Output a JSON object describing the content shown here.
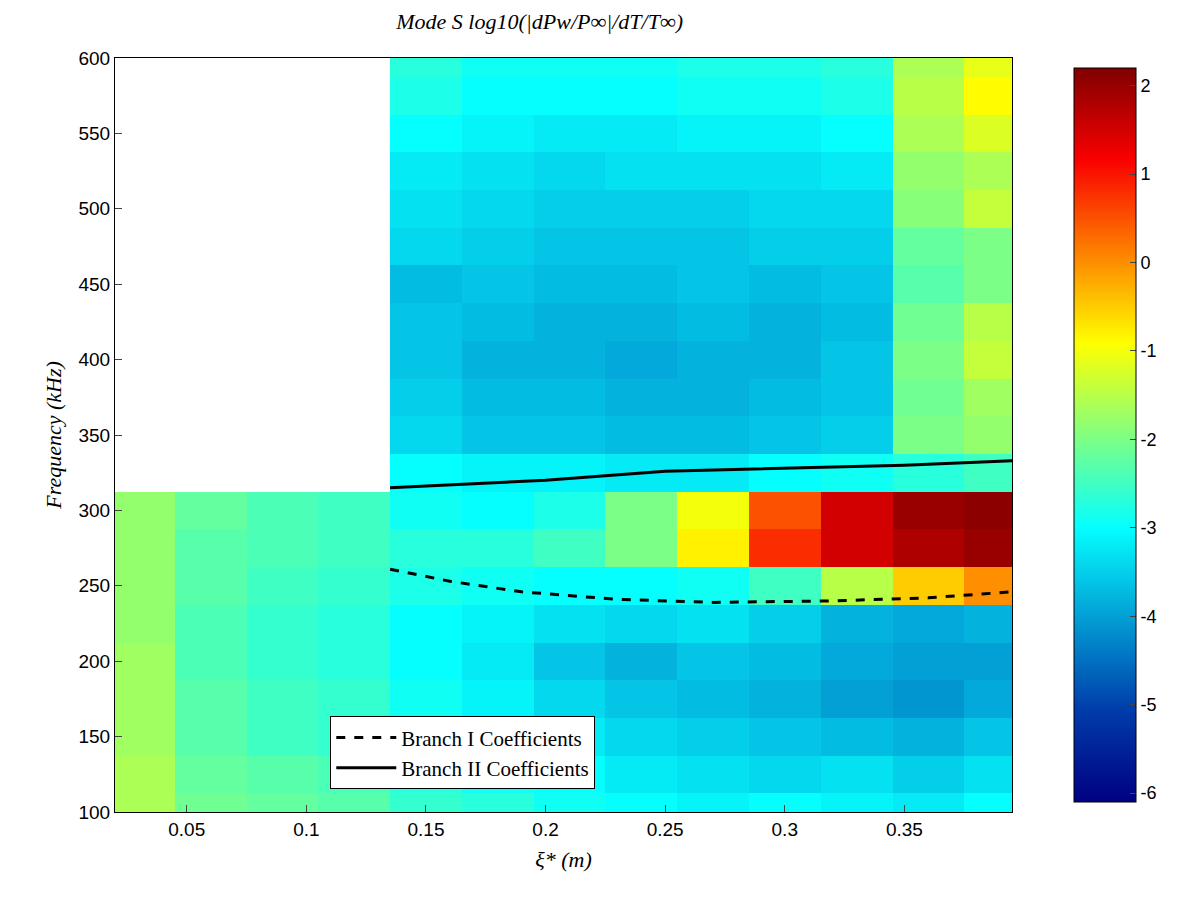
{
  "chart_data": {
    "type": "heatmap",
    "title": "Mode S log10(|dPw/P∞|/dT/T∞)",
    "x_label": "ξ* (m)",
    "y_label": "Frequency (kHz)",
    "xlim": [
      0.02,
      0.395
    ],
    "xticks": [
      0.05,
      0.1,
      0.15,
      0.2,
      0.25,
      0.3,
      0.35
    ],
    "ylim": [
      100,
      600
    ],
    "yticks": [
      100,
      150,
      200,
      250,
      300,
      350,
      400,
      450,
      500,
      550,
      600
    ],
    "zlim": [
      -6.1,
      2.2
    ],
    "zticks": [
      -6,
      -5,
      -4,
      -3,
      -2,
      -1,
      0,
      1,
      2
    ],
    "x": [
      0.03,
      0.06,
      0.09,
      0.12,
      0.15,
      0.18,
      0.21,
      0.24,
      0.27,
      0.3,
      0.33,
      0.36,
      0.39
    ],
    "y": [
      100,
      125,
      150,
      175,
      200,
      225,
      250,
      275,
      300,
      325,
      350,
      375,
      400,
      425,
      450,
      475,
      500,
      525,
      550,
      575,
      600
    ],
    "cells": [
      [
        -1.6,
        -2.1,
        -2.2,
        -2.3,
        -2.6,
        -2.7,
        -2.9,
        -3.0,
        -3.1,
        -3.0,
        -3.1,
        -3.2,
        -3.0
      ],
      [
        -1.6,
        -2.2,
        -2.3,
        -2.4,
        -2.7,
        -2.9,
        -3.0,
        -3.2,
        -3.3,
        -3.4,
        -3.3,
        -3.5,
        -3.3
      ],
      [
        -1.7,
        -2.3,
        -2.5,
        -2.6,
        -2.8,
        -3.0,
        -3.2,
        -3.4,
        -3.5,
        -3.6,
        -3.7,
        -3.8,
        -3.6
      ],
      [
        -1.7,
        -2.3,
        -2.5,
        -2.6,
        -2.9,
        -3.1,
        -3.4,
        -3.6,
        -3.7,
        -3.8,
        -4.0,
        -4.1,
        -3.9
      ],
      [
        -1.7,
        -2.4,
        -2.6,
        -2.7,
        -3.0,
        -3.2,
        -3.6,
        -3.8,
        -3.6,
        -3.7,
        -3.9,
        -4.0,
        -4.0
      ],
      [
        -1.8,
        -2.4,
        -2.6,
        -2.7,
        -3.0,
        -3.1,
        -3.3,
        -3.4,
        -3.3,
        -3.5,
        -3.8,
        -3.9,
        -3.8
      ],
      [
        -1.8,
        -2.3,
        -2.5,
        -2.6,
        -2.8,
        -2.9,
        -3.0,
        -3.0,
        -2.9,
        -2.5,
        -1.5,
        -0.5,
        0.0
      ],
      [
        -1.8,
        -2.3,
        -2.4,
        -2.5,
        -2.7,
        -2.7,
        -2.5,
        -2.0,
        -0.8,
        0.8,
        1.5,
        1.8,
        2.0
      ],
      [
        -1.8,
        -2.2,
        -2.4,
        -2.5,
        -2.9,
        -3.0,
        -2.8,
        -2.0,
        -1.0,
        0.5,
        1.5,
        2.0,
        2.1
      ],
      [
        null,
        null,
        null,
        null,
        -3.0,
        -3.1,
        -3.1,
        -3.2,
        -3.2,
        -3.0,
        -2.9,
        -2.7,
        -2.5
      ],
      [
        null,
        null,
        null,
        null,
        -3.4,
        -3.6,
        -3.6,
        -3.7,
        -3.7,
        -3.6,
        -3.5,
        -2.0,
        -1.8
      ],
      [
        null,
        null,
        null,
        null,
        -3.5,
        -3.7,
        -3.7,
        -3.8,
        -3.8,
        -3.7,
        -3.6,
        -2.1,
        -1.7
      ],
      [
        null,
        null,
        null,
        null,
        -3.6,
        -3.8,
        -3.8,
        -3.9,
        -3.8,
        -3.8,
        -3.6,
        -2.0,
        -1.4
      ],
      [
        null,
        null,
        null,
        null,
        -3.6,
        -3.7,
        -3.8,
        -3.8,
        -3.7,
        -3.8,
        -3.7,
        -2.1,
        -1.5
      ],
      [
        null,
        null,
        null,
        null,
        -3.7,
        -3.6,
        -3.7,
        -3.7,
        -3.6,
        -3.7,
        -3.6,
        -2.3,
        -2.0
      ],
      [
        null,
        null,
        null,
        null,
        -3.4,
        -3.5,
        -3.6,
        -3.6,
        -3.6,
        -3.5,
        -3.5,
        -2.2,
        -2.0
      ],
      [
        null,
        null,
        null,
        null,
        -3.3,
        -3.4,
        -3.5,
        -3.5,
        -3.5,
        -3.4,
        -3.4,
        -1.9,
        -1.4
      ],
      [
        null,
        null,
        null,
        null,
        -3.2,
        -3.3,
        -3.4,
        -3.3,
        -3.3,
        -3.3,
        -3.2,
        -1.8,
        -1.6
      ],
      [
        null,
        null,
        null,
        null,
        -3.0,
        -3.1,
        -3.2,
        -3.2,
        -3.1,
        -3.1,
        -3.0,
        -1.6,
        -1.2
      ],
      [
        null,
        null,
        null,
        null,
        -2.8,
        -3.0,
        -3.0,
        -3.0,
        -2.9,
        -2.9,
        -2.8,
        -1.5,
        -0.9
      ],
      [
        null,
        null,
        null,
        null,
        -2.7,
        -2.9,
        -2.9,
        -2.9,
        -2.8,
        -2.8,
        -2.7,
        -1.6,
        -1.1
      ]
    ],
    "series": [
      {
        "name": "Branch I Coefficients",
        "type": "line",
        "color": "#000000",
        "line_style": "dashed",
        "x": [
          0.135,
          0.16,
          0.19,
          0.23,
          0.27,
          0.32,
          0.36,
          0.395
        ],
        "values": [
          261,
          253,
          246,
          241,
          239,
          240,
          242,
          246
        ]
      },
      {
        "name": "Branch II Coefficients",
        "type": "line",
        "color": "#000000",
        "line_style": "solid",
        "x": [
          0.135,
          0.2,
          0.25,
          0.3,
          0.35,
          0.395
        ],
        "values": [
          315,
          320,
          326,
          328,
          330,
          333
        ]
      }
    ],
    "legend": "lower center"
  }
}
